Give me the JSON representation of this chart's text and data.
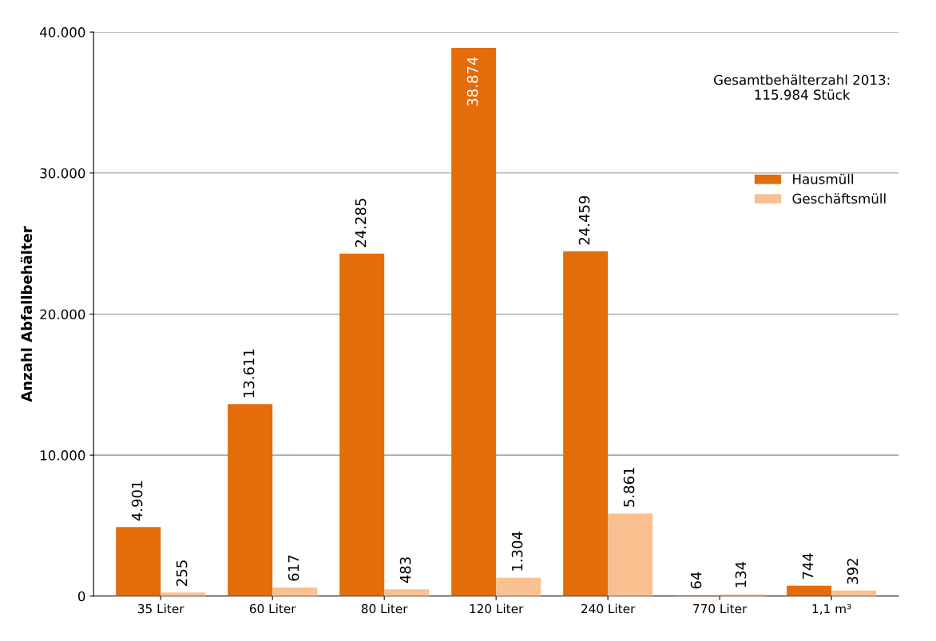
{
  "chart_data": {
    "type": "bar",
    "ylabel": "Anzahl Abfallbehälter",
    "categories": [
      "35 Liter",
      "60 Liter",
      "80 Liter",
      "120 Liter",
      "240 Liter",
      "770 Liter",
      "1,1 m³"
    ],
    "series": [
      {
        "name": "Hausmüll",
        "color": "#e46c0a",
        "values": [
          4901,
          13611,
          24285,
          38874,
          24459,
          64,
          744
        ],
        "value_labels": [
          "4.901",
          "13.611",
          "24.285",
          "38.874",
          "24.459",
          "64",
          "744"
        ]
      },
      {
        "name": "Geschäftsmüll",
        "color": "#fac090",
        "values": [
          255,
          617,
          483,
          1304,
          5861,
          134,
          392
        ],
        "value_labels": [
          "255",
          "617",
          "483",
          "1.304",
          "5.861",
          "134",
          "392"
        ]
      }
    ],
    "ylim": [
      0,
      40000
    ],
    "yticks": [
      {
        "value": 0,
        "label": "0"
      },
      {
        "value": 10000,
        "label": "10.000"
      },
      {
        "value": 20000,
        "label": "20.000"
      },
      {
        "value": 30000,
        "label": "30.000"
      },
      {
        "value": 40000,
        "label": "40.000"
      }
    ],
    "grid": "y",
    "legend": "right",
    "annotations": [
      "Gesamtbehälterzahl 2013:\n115.984 Stück"
    ]
  }
}
